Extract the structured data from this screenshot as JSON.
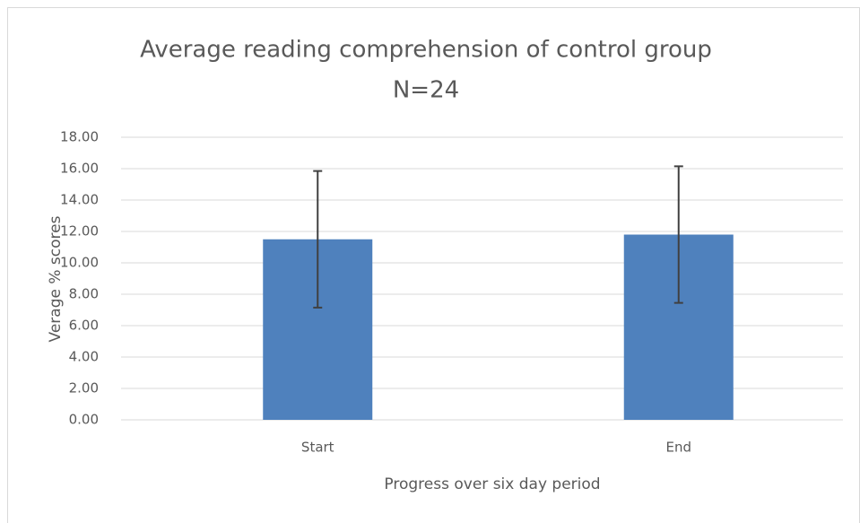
{
  "chart_data": {
    "type": "bar",
    "title": "Average reading comprehension of control group",
    "subtitle": "N=24",
    "x_label": "Progress over six day period",
    "y_label": "Verage % scores",
    "categories": [
      "Start",
      "End"
    ],
    "values": [
      11.5,
      11.8
    ],
    "errors": [
      4.35,
      4.35
    ],
    "color": "#4f81bd",
    "ylim": [
      0,
      18
    ],
    "yticks": [
      {
        "value": 0,
        "label": "0.00"
      },
      {
        "value": 2,
        "label": "2.00"
      },
      {
        "value": 4,
        "label": "4.00"
      },
      {
        "value": 6,
        "label": "6.00"
      },
      {
        "value": 8,
        "label": "8.00"
      },
      {
        "value": 10,
        "label": "10.00"
      },
      {
        "value": 12,
        "label": "12.00"
      },
      {
        "value": 14,
        "label": "14.00"
      },
      {
        "value": 16,
        "label": "16.00"
      },
      {
        "value": 18,
        "label": "18.00"
      }
    ],
    "grid": true
  }
}
